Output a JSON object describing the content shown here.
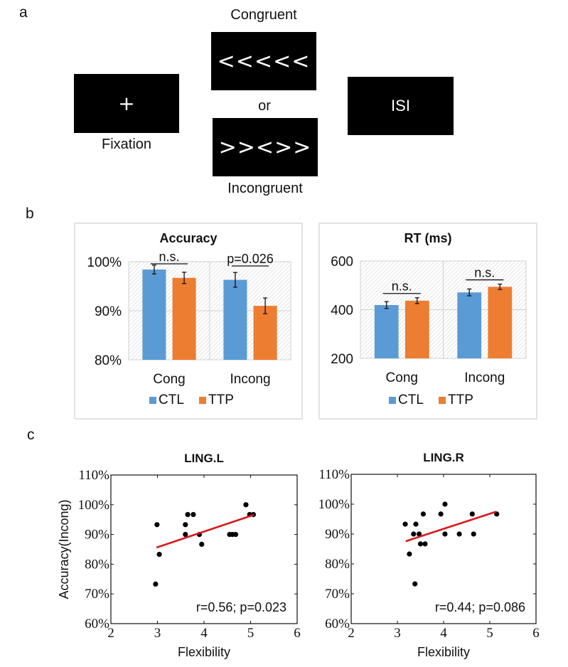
{
  "panels": {
    "a": {
      "letter": "a",
      "fixation": {
        "symbol": "+",
        "label": "Fixation"
      },
      "congruent": {
        "stimulus": "<<<<<",
        "label": "Congruent"
      },
      "or_label": "or",
      "incongruent": {
        "stimulus": ">><>>",
        "label": "Incongruent"
      },
      "isi": {
        "symbol": "ISI"
      }
    },
    "b": {
      "letter": "b"
    },
    "c": {
      "letter": "c"
    }
  },
  "colors": {
    "ctl": "#5b9bd5",
    "ttp": "#ed7d31",
    "regression": "#d9191c"
  },
  "chart_data": [
    {
      "id": "accuracy",
      "type": "bar",
      "title": "Accuracy",
      "categories": [
        "Cong",
        "Incong"
      ],
      "series": [
        {
          "name": "CTL",
          "values": [
            98.4,
            96.3
          ],
          "errors": [
            0.9,
            1.5
          ]
        },
        {
          "name": "TTP",
          "values": [
            96.7,
            91.0
          ],
          "errors": [
            1.15,
            1.6
          ]
        }
      ],
      "ylim": [
        80,
        100
      ],
      "yticks": [
        80,
        90,
        100
      ],
      "ytick_labels": [
        "80%",
        "90%",
        "100%"
      ],
      "grid": true,
      "legend": "bottom",
      "annotations": [
        {
          "category": "Cong",
          "text": "n.s."
        },
        {
          "category": "Incong",
          "text": "p=0.026"
        }
      ]
    },
    {
      "id": "rt",
      "type": "bar",
      "title": "RT (ms)",
      "categories": [
        "Cong",
        "Incong"
      ],
      "series": [
        {
          "name": "CTL",
          "values": [
            419,
            471
          ],
          "errors": [
            14,
            14
          ]
        },
        {
          "name": "TTP",
          "values": [
            437,
            494
          ],
          "errors": [
            12,
            11
          ]
        }
      ],
      "ylim": [
        200,
        600
      ],
      "yticks": [
        200,
        400,
        600
      ],
      "ytick_labels": [
        "200",
        "400",
        "600"
      ],
      "grid": true,
      "legend": "bottom",
      "annotations": [
        {
          "category": "Cong",
          "text": "n.s."
        },
        {
          "category": "Incong",
          "text": "n.s."
        }
      ]
    },
    {
      "id": "ling-l",
      "type": "scatter",
      "title": "LING.L",
      "xlabel": "Flexibility",
      "ylabel": "Accuracy(Incong)",
      "xlim": [
        2,
        6
      ],
      "ylim": [
        60,
        110
      ],
      "xticks": [
        2,
        3,
        4,
        5,
        6
      ],
      "yticks": [
        60,
        70,
        80,
        90,
        100,
        110
      ],
      "ytick_labels": [
        "60%",
        "70%",
        "80%",
        "90%",
        "100%",
        "110%"
      ],
      "points": [
        [
          2.96,
          73.3
        ],
        [
          2.99,
          93.3
        ],
        [
          3.04,
          83.3
        ],
        [
          3.6,
          93.3
        ],
        [
          3.6,
          90.0
        ],
        [
          3.65,
          96.7
        ],
        [
          3.77,
          96.7
        ],
        [
          3.9,
          90.0
        ],
        [
          3.95,
          86.7
        ],
        [
          4.55,
          90.0
        ],
        [
          4.61,
          90.0
        ],
        [
          4.68,
          90.0
        ],
        [
          4.9,
          100.0
        ],
        [
          4.98,
          96.7
        ],
        [
          5.06,
          96.7
        ]
      ],
      "fit_line": [
        [
          2.98,
          85.6
        ],
        [
          5.07,
          96.6
        ]
      ],
      "annotation": "r=0.56; p=0.023"
    },
    {
      "id": "ling-r",
      "type": "scatter",
      "title": "LING.R",
      "xlabel": "Flexibility",
      "ylabel": "",
      "xlim": [
        2,
        6
      ],
      "ylim": [
        60,
        110
      ],
      "xticks": [
        2,
        3,
        4,
        5,
        6
      ],
      "yticks": [
        60,
        70,
        80,
        90,
        100,
        110
      ],
      "ytick_labels": [
        "60%",
        "70%",
        "80%",
        "90%",
        "100%",
        "110%"
      ],
      "points": [
        [
          3.17,
          93.3
        ],
        [
          3.26,
          83.3
        ],
        [
          3.35,
          90.0
        ],
        [
          3.4,
          93.3
        ],
        [
          3.38,
          73.3
        ],
        [
          3.47,
          90.0
        ],
        [
          3.5,
          86.7
        ],
        [
          3.6,
          86.7
        ],
        [
          3.56,
          96.7
        ],
        [
          3.94,
          96.7
        ],
        [
          4.03,
          100.0
        ],
        [
          4.03,
          90.0
        ],
        [
          4.34,
          90.0
        ],
        [
          4.62,
          96.7
        ],
        [
          4.65,
          90.0
        ],
        [
          5.15,
          96.7
        ]
      ],
      "fit_line": [
        [
          3.18,
          87.6
        ],
        [
          5.14,
          97.5
        ]
      ],
      "annotation": "r=0.44; p=0.086"
    }
  ]
}
